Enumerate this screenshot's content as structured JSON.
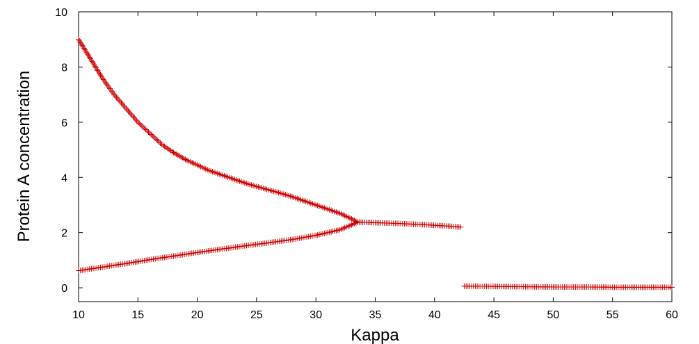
{
  "chart_data": {
    "type": "scatter",
    "title": "",
    "xlabel": "Kappa",
    "ylabel": "Protein A concentration",
    "xlim": [
      10,
      60
    ],
    "ylim": [
      -0.5,
      10
    ],
    "x_ticks": [
      10,
      15,
      20,
      25,
      30,
      35,
      40,
      45,
      50,
      55,
      60
    ],
    "y_ticks": [
      0,
      2,
      4,
      6,
      8,
      10
    ],
    "grid": false,
    "legend": "none",
    "marker": "plus",
    "marker_color": "#cc0000",
    "series": [
      {
        "x": [
          10,
          11,
          12,
          13,
          14,
          15,
          16,
          17,
          18,
          19,
          20,
          21,
          22,
          23,
          24,
          25,
          26,
          27,
          28,
          29,
          30,
          31,
          32,
          33,
          33.5
        ],
        "values": [
          9.0,
          8.3,
          7.6,
          7.0,
          6.5,
          6.0,
          5.6,
          5.2,
          4.9,
          4.65,
          4.45,
          4.25,
          4.1,
          3.95,
          3.8,
          3.67,
          3.55,
          3.43,
          3.3,
          3.15,
          3.0,
          2.85,
          2.7,
          2.5,
          2.38
        ]
      },
      {
        "x": [
          10,
          12,
          14,
          16,
          18,
          20,
          22,
          24,
          26,
          28,
          30,
          31,
          32,
          33,
          33.5
        ],
        "values": [
          0.62,
          0.75,
          0.88,
          1.02,
          1.15,
          1.28,
          1.4,
          1.52,
          1.63,
          1.75,
          1.9,
          2.0,
          2.1,
          2.28,
          2.38
        ]
      },
      {
        "x": [
          33.5,
          35,
          37,
          39,
          41,
          42.2
        ],
        "values": [
          2.38,
          2.36,
          2.33,
          2.29,
          2.24,
          2.2
        ]
      },
      {
        "x": [
          42.5,
          45,
          47.5,
          50,
          52.5,
          55,
          57.5,
          60
        ],
        "values": [
          0.06,
          0.05,
          0.04,
          0.03,
          0.03,
          0.02,
          0.02,
          0.02
        ]
      }
    ]
  }
}
